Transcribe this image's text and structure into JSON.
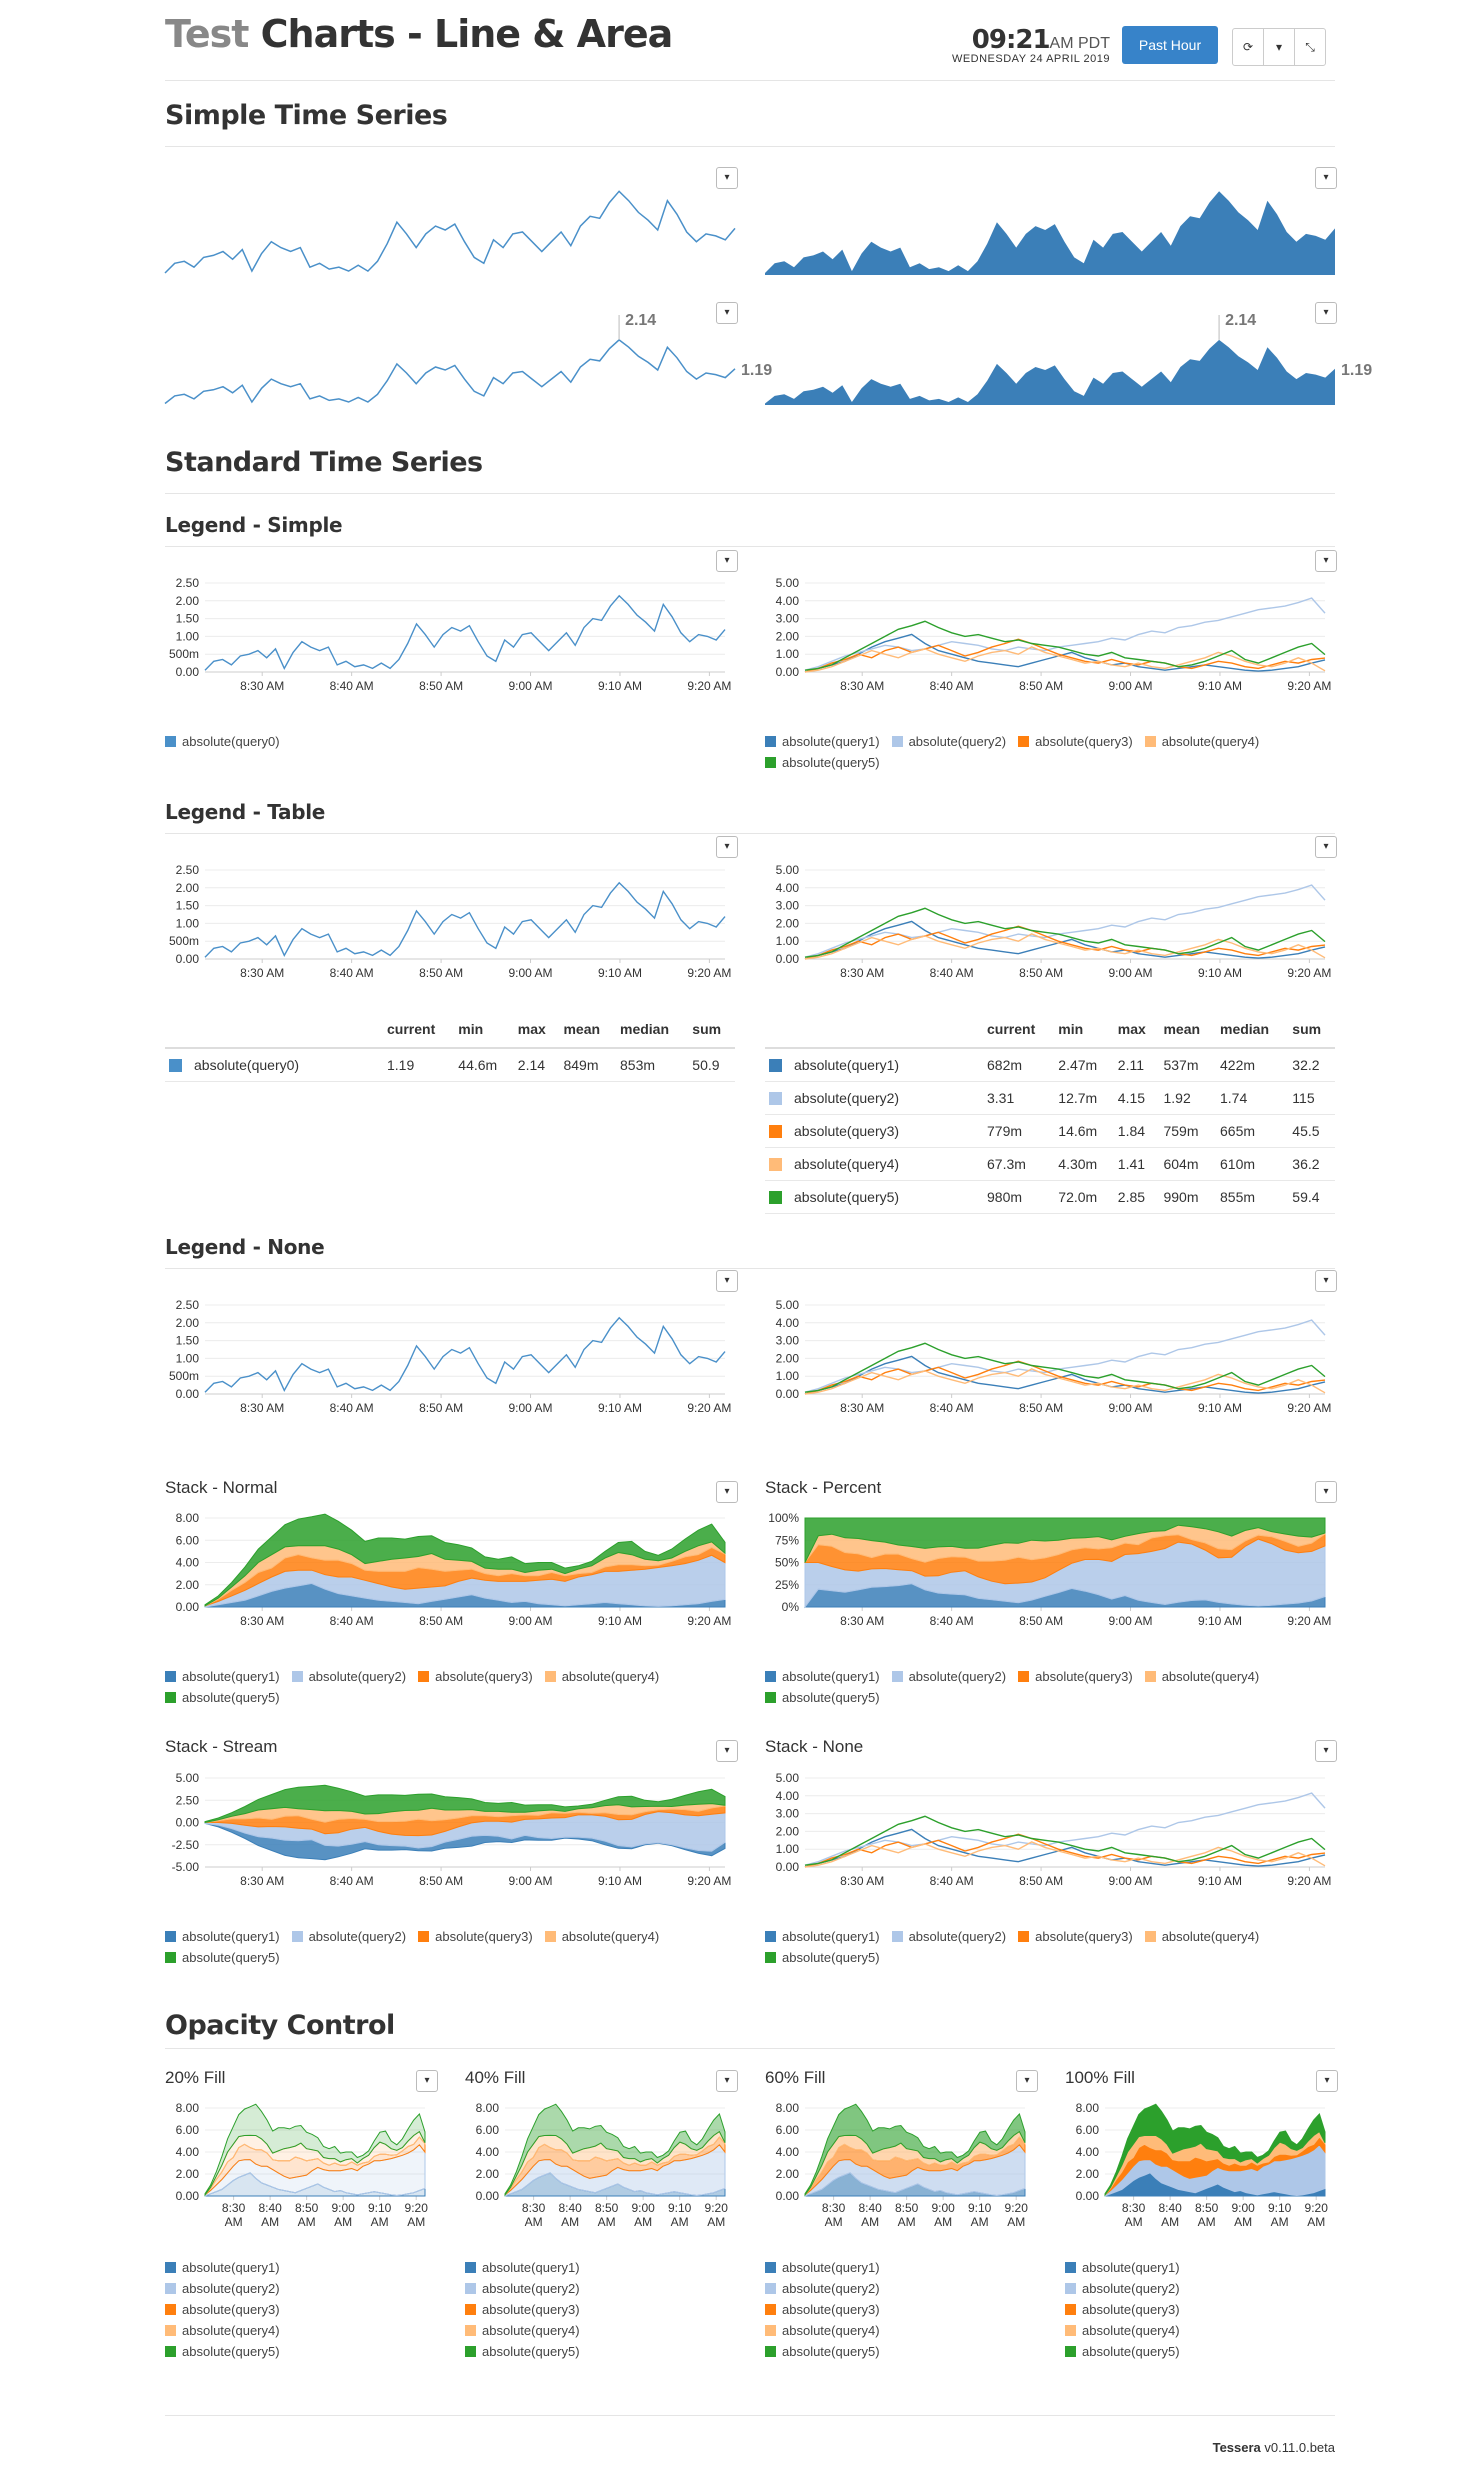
{
  "header": {
    "title_prefix": "Test",
    "title_main": "Charts - Line & Area",
    "time": "09:21",
    "ampm_tz": "AM PDT",
    "date": "WEDNESDAY 24 APRIL 2019",
    "range_button": "Past Hour",
    "refresh_icon": "refresh-icon",
    "caret_icon": "caret-down-icon",
    "fullscreen_icon": "compress-icon"
  },
  "sections": {
    "simple": "Simple Time Series",
    "standard": "Standard Time Series",
    "legend_simple": "Legend - Simple",
    "legend_table": "Legend - Table",
    "legend_none": "Legend - None",
    "stack_normal": "Stack - Normal",
    "stack_percent": "Stack - Percent",
    "stack_stream": "Stack - Stream",
    "stack_none": "Stack - None",
    "opacity": "Opacity Control",
    "fill20": "20% Fill",
    "fill40": "40% Fill",
    "fill60": "60% Fill",
    "fill100": "100% Fill"
  },
  "dropdown_glyph": "▾",
  "colors": {
    "query0": "#4a90c9",
    "query1": "#3b7fb8",
    "query2": "#aec7e8",
    "query3": "#ff7f0e",
    "query4": "#ffbb78",
    "query5": "#2ca02c",
    "area_blue": "#3b7fb8"
  },
  "simple_callouts": {
    "max": "2.14",
    "current": "1.19"
  },
  "legend_labels": {
    "q0": "absolute(query0)",
    "q1": "absolute(query1)",
    "q2": "absolute(query2)",
    "q3": "absolute(query3)",
    "q4": "absolute(query4)",
    "q5": "absolute(query5)"
  },
  "table_headers": [
    "current",
    "min",
    "max",
    "mean",
    "median",
    "sum"
  ],
  "table_single": [
    {
      "name": "absolute(query0)",
      "current": "1.19",
      "min": "44.6m",
      "max": "2.14",
      "mean": "849m",
      "median": "853m",
      "sum": "50.9"
    }
  ],
  "table_multi": [
    {
      "name": "absolute(query1)",
      "current": "682m",
      "min": "2.47m",
      "max": "2.11",
      "mean": "537m",
      "median": "422m",
      "sum": "32.2"
    },
    {
      "name": "absolute(query2)",
      "current": "3.31",
      "min": "12.7m",
      "max": "4.15",
      "mean": "1.92",
      "median": "1.74",
      "sum": "115"
    },
    {
      "name": "absolute(query3)",
      "current": "779m",
      "min": "14.6m",
      "max": "1.84",
      "mean": "759m",
      "median": "665m",
      "sum": "45.5"
    },
    {
      "name": "absolute(query4)",
      "current": "67.3m",
      "min": "4.30m",
      "max": "1.41",
      "mean": "604m",
      "median": "610m",
      "sum": "36.2"
    },
    {
      "name": "absolute(query5)",
      "current": "980m",
      "min": "72.0m",
      "max": "2.85",
      "mean": "990m",
      "median": "855m",
      "sum": "59.4"
    }
  ],
  "footer": {
    "brand": "Tessera",
    "version": "v0.11.0.beta"
  },
  "chart_data": [
    {
      "type": "line",
      "name": "single-series",
      "x_ticks": [
        "8:30 AM",
        "8:40 AM",
        "8:50 AM",
        "9:00 AM",
        "9:10 AM",
        "9:20 AM"
      ],
      "y_ticks": [
        "2.50",
        "2.00",
        "1.50",
        "1.00",
        "500m",
        "0.00"
      ],
      "ylim": [
        0,
        2.5
      ],
      "series": [
        {
          "name": "absolute(query0)",
          "values": [
            0.05,
            0.3,
            0.35,
            0.2,
            0.45,
            0.5,
            0.6,
            0.4,
            0.65,
            0.1,
            0.55,
            0.85,
            0.7,
            0.6,
            0.7,
            0.2,
            0.3,
            0.15,
            0.2,
            0.1,
            0.25,
            0.1,
            0.35,
            0.8,
            1.35,
            1.05,
            0.7,
            1.05,
            1.25,
            1.15,
            1.3,
            0.85,
            0.45,
            0.3,
            0.9,
            0.7,
            1.05,
            1.1,
            0.85,
            0.6,
            0.85,
            1.1,
            0.75,
            1.25,
            1.5,
            1.45,
            1.85,
            2.14,
            1.9,
            1.6,
            1.4,
            1.15,
            1.9,
            1.55,
            1.1,
            0.85,
            1.05,
            1.0,
            0.9,
            1.19
          ]
        }
      ]
    },
    {
      "type": "line",
      "name": "multi-series",
      "x_ticks": [
        "8:30 AM",
        "8:40 AM",
        "8:50 AM",
        "9:00 AM",
        "9:10 AM",
        "9:20 AM"
      ],
      "y_ticks": [
        "5.00",
        "4.00",
        "3.00",
        "2.00",
        "1.00",
        "0.00"
      ],
      "ylim": [
        0,
        5
      ],
      "series": [
        {
          "name": "absolute(query1)",
          "values": [
            0.0,
            0.2,
            0.4,
            0.6,
            1.0,
            1.4,
            1.7,
            1.9,
            2.11,
            1.6,
            1.2,
            1.0,
            0.8,
            0.6,
            0.5,
            0.4,
            0.3,
            0.5,
            0.7,
            0.9,
            1.1,
            0.8,
            0.6,
            0.4,
            0.5,
            0.3,
            0.2,
            0.1,
            0.2,
            0.3,
            0.4,
            0.3,
            0.2,
            0.1,
            0.05,
            0.1,
            0.2,
            0.3,
            0.5,
            0.682
          ]
        },
        {
          "name": "absolute(query2)",
          "values": [
            0.1,
            0.3,
            0.6,
            0.9,
            1.1,
            1.3,
            1.5,
            1.4,
            1.2,
            1.3,
            1.5,
            1.7,
            1.6,
            1.5,
            1.3,
            1.2,
            1.4,
            1.3,
            1.2,
            1.4,
            1.5,
            1.6,
            1.7,
            1.9,
            1.8,
            2.1,
            2.3,
            2.2,
            2.5,
            2.6,
            2.8,
            2.9,
            3.1,
            3.3,
            3.5,
            3.6,
            3.7,
            3.9,
            4.15,
            3.31
          ]
        },
        {
          "name": "absolute(query3)",
          "values": [
            0.0,
            0.2,
            0.5,
            0.7,
            1.0,
            0.8,
            1.2,
            1.4,
            1.1,
            1.3,
            1.5,
            1.2,
            0.9,
            1.1,
            1.4,
            1.6,
            1.84,
            1.6,
            1.3,
            1.0,
            0.8,
            0.6,
            0.5,
            0.7,
            0.5,
            0.4,
            0.6,
            0.5,
            0.3,
            0.2,
            0.4,
            0.6,
            0.5,
            0.3,
            0.2,
            0.4,
            0.6,
            0.5,
            0.7,
            0.779
          ]
        },
        {
          "name": "absolute(query4)",
          "values": [
            0.0,
            0.1,
            0.3,
            0.6,
            0.9,
            1.2,
            1.0,
            0.8,
            1.1,
            1.3,
            1.0,
            0.8,
            0.6,
            0.9,
            1.1,
            1.2,
            1.0,
            1.41,
            1.1,
            0.9,
            0.7,
            0.5,
            0.6,
            0.4,
            0.3,
            0.5,
            0.3,
            0.2,
            0.4,
            0.6,
            0.8,
            1.1,
            0.9,
            0.6,
            0.4,
            0.3,
            0.5,
            0.8,
            0.5,
            0.0673
          ]
        },
        {
          "name": "absolute(query5)",
          "values": [
            0.1,
            0.2,
            0.4,
            0.8,
            1.2,
            1.6,
            2.0,
            2.4,
            2.6,
            2.85,
            2.5,
            2.2,
            2.0,
            2.1,
            1.9,
            1.7,
            1.8,
            1.6,
            1.5,
            1.4,
            1.2,
            1.0,
            0.9,
            1.1,
            0.8,
            0.7,
            0.6,
            0.5,
            0.3,
            0.4,
            0.6,
            0.9,
            1.2,
            0.7,
            0.5,
            0.8,
            1.1,
            1.4,
            1.6,
            0.98
          ]
        }
      ]
    },
    {
      "type": "area",
      "name": "stacked",
      "stack_y_ticks_normal": [
        "8.00",
        "6.00",
        "4.00",
        "2.00",
        "0.00"
      ],
      "stack_y_ticks_percent": [
        "100%",
        "75%",
        "50%",
        "25%",
        "0%"
      ],
      "stack_y_ticks_stream": [
        "5.00",
        "2.50",
        "0.00",
        "-2.50",
        "-5.00"
      ],
      "stack_y_ticks_none": [
        "5.00",
        "4.00",
        "3.00",
        "2.00",
        "1.00",
        "0.00"
      ],
      "x_ticks_short": [
        "8:30 AM",
        "8:40 AM",
        "8:50 AM",
        "9:00 AM",
        "9:10 AM",
        "9:20 AM"
      ]
    }
  ]
}
